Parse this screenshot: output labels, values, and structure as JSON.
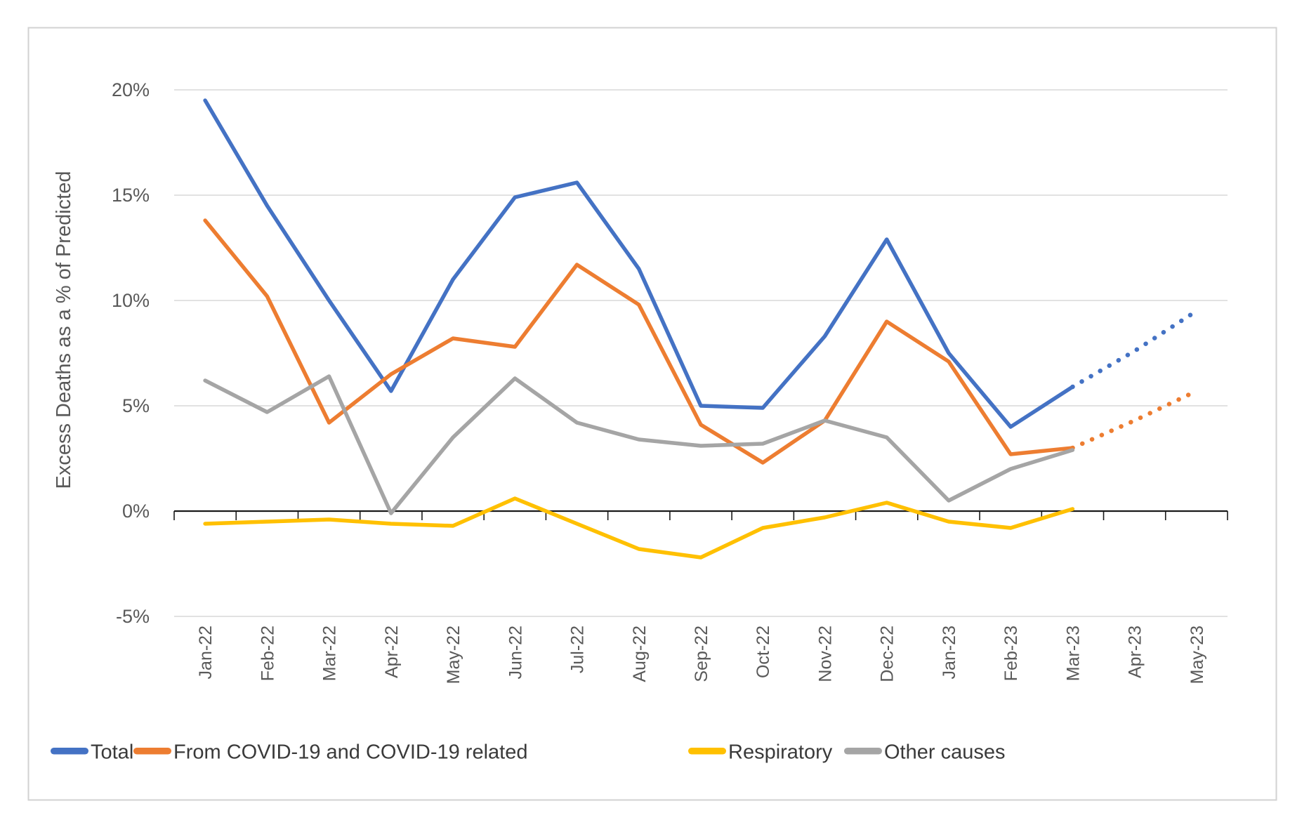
{
  "chart_data": {
    "type": "line",
    "title": "",
    "ylabel": "Excess Deaths as a % of Predicted",
    "xlabel": "",
    "ylim": [
      -5,
      20
    ],
    "ytick_step": 5,
    "ytick_suffix": "%",
    "grid": true,
    "legend_position": "bottom",
    "categories": [
      "Jan-22",
      "Feb-22",
      "Mar-22",
      "Apr-22",
      "May-22",
      "Jun-22",
      "Jul-22",
      "Aug-22",
      "Sep-22",
      "Oct-22",
      "Nov-22",
      "Dec-22",
      "Jan-23",
      "Feb-23",
      "Mar-23",
      "Apr-23",
      "May-23"
    ],
    "note": "solid lines cover Jan-22 through Mar-23; Total and COVID series continue as dotted forecast through May-23",
    "series": [
      {
        "name": "Total",
        "color": "#4472C4",
        "style": "solid-then-dotted",
        "values": [
          19.5,
          14.5,
          10.0,
          5.7,
          11.0,
          14.9,
          15.6,
          11.5,
          5.0,
          4.9,
          8.3,
          12.9,
          7.5,
          4.0,
          5.9
        ],
        "forecast": [
          7.6,
          9.5
        ]
      },
      {
        "name": "From COVID-19 and COVID-19 related",
        "color": "#ED7D31",
        "style": "solid-then-dotted",
        "values": [
          13.8,
          10.2,
          4.2,
          6.5,
          8.2,
          7.8,
          11.7,
          9.8,
          4.1,
          2.3,
          4.3,
          9.0,
          7.1,
          2.7,
          3.0
        ],
        "forecast": [
          4.3,
          5.7
        ]
      },
      {
        "name": "Respiratory",
        "color": "#FFC000",
        "style": "solid",
        "values": [
          -0.6,
          -0.5,
          -0.4,
          -0.6,
          -0.7,
          0.6,
          -0.6,
          -1.8,
          -2.2,
          -0.8,
          -0.3,
          0.4,
          -0.5,
          -0.8,
          0.1
        ],
        "forecast": []
      },
      {
        "name": "Other causes",
        "color": "#A5A5A5",
        "style": "solid",
        "values": [
          6.2,
          4.7,
          6.4,
          -0.1,
          3.5,
          6.3,
          4.2,
          3.4,
          3.1,
          3.2,
          4.3,
          3.5,
          0.5,
          2.0,
          2.9
        ],
        "forecast": []
      }
    ],
    "axis_colors": {
      "tick_label": "#595959",
      "axis_line": "#1a1a1a",
      "gridline": "#D9D9D9",
      "legend_text": "#3a3a3a",
      "chart_border": "#D2D2D2"
    }
  }
}
